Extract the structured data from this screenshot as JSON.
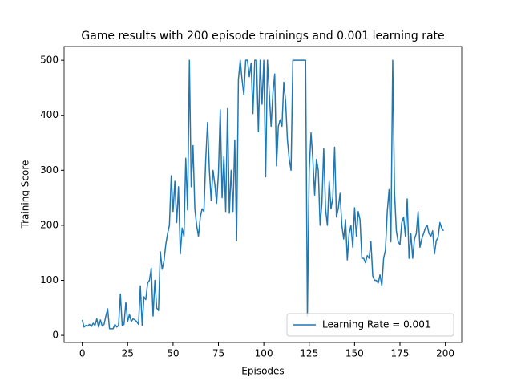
{
  "chart_data": {
    "type": "line",
    "title": "Game results with 200 episode trainings and 0.001 learning rate",
    "xlabel": "Episodes",
    "ylabel": "Training Score",
    "x": [
      0,
      1,
      2,
      3,
      4,
      5,
      6,
      7,
      8,
      9,
      10,
      11,
      12,
      13,
      14,
      15,
      16,
      17,
      18,
      19,
      20,
      21,
      22,
      23,
      24,
      25,
      26,
      27,
      28,
      29,
      30,
      31,
      32,
      33,
      34,
      35,
      36,
      37,
      38,
      39,
      40,
      41,
      42,
      43,
      44,
      45,
      46,
      47,
      48,
      49,
      50,
      51,
      52,
      53,
      54,
      55,
      56,
      57,
      58,
      59,
      60,
      61,
      62,
      63,
      64,
      65,
      66,
      67,
      68,
      69,
      70,
      71,
      72,
      73,
      74,
      75,
      76,
      77,
      78,
      79,
      80,
      81,
      82,
      83,
      84,
      85,
      86,
      87,
      88,
      89,
      90,
      91,
      92,
      93,
      94,
      95,
      96,
      97,
      98,
      99,
      100,
      101,
      102,
      103,
      104,
      105,
      106,
      107,
      108,
      109,
      110,
      111,
      112,
      113,
      114,
      115,
      116,
      117,
      118,
      119,
      120,
      121,
      122,
      123,
      124,
      125,
      126,
      127,
      128,
      129,
      130,
      131,
      132,
      133,
      134,
      135,
      136,
      137,
      138,
      139,
      140,
      141,
      142,
      143,
      144,
      145,
      146,
      147,
      148,
      149,
      150,
      151,
      152,
      153,
      154,
      155,
      156,
      157,
      158,
      159,
      160,
      161,
      162,
      163,
      164,
      165,
      166,
      167,
      168,
      169,
      170,
      171,
      172,
      173,
      174,
      175,
      176,
      177,
      178,
      179,
      180,
      181,
      182,
      183,
      184,
      185,
      186,
      187,
      188,
      189,
      190,
      191,
      192,
      193,
      194,
      195,
      196,
      197,
      198,
      199
    ],
    "series": [
      {
        "name": "Learning Rate = 0.001",
        "color": "#1f77b4",
        "values": [
          28,
          15,
          18,
          17,
          20,
          16,
          22,
          18,
          30,
          15,
          28,
          17,
          20,
          35,
          48,
          12,
          12,
          12,
          20,
          15,
          18,
          75,
          18,
          20,
          60,
          25,
          38,
          25,
          30,
          28,
          25,
          20,
          90,
          18,
          70,
          65,
          95,
          100,
          122,
          35,
          100,
          50,
          45,
          152,
          120,
          135,
          165,
          185,
          200,
          290,
          225,
          280,
          205,
          270,
          148,
          195,
          180,
          322,
          228,
          500,
          270,
          345,
          230,
          200,
          180,
          215,
          230,
          225,
          320,
          387,
          300,
          245,
          300,
          275,
          240,
          295,
          410,
          250,
          325,
          225,
          412,
          222,
          300,
          225,
          355,
          172,
          465,
          500,
          465,
          437,
          500,
          500,
          470,
          495,
          403,
          500,
          500,
          370,
          500,
          420,
          500,
          288,
          500,
          440,
          380,
          440,
          475,
          308,
          380,
          392,
          380,
          460,
          425,
          355,
          320,
          300,
          500,
          500,
          500,
          500,
          500,
          500,
          500,
          500,
          35,
          300,
          368,
          320,
          255,
          320,
          300,
          200,
          240,
          340,
          230,
          200,
          280,
          230,
          250,
          342,
          215,
          230,
          258,
          200,
          175,
          210,
          137,
          185,
          200,
          160,
          232,
          180,
          225,
          210,
          140,
          140,
          132,
          145,
          140,
          170,
          108,
          100,
          100,
          95,
          110,
          90,
          140,
          155,
          225,
          265,
          170,
          500,
          260,
          190,
          170,
          165,
          205,
          215,
          180,
          248,
          140,
          185,
          140,
          175,
          185,
          225,
          160,
          175,
          185,
          195,
          200,
          185,
          180,
          190,
          148,
          172,
          178,
          205,
          195,
          190
        ]
      }
    ],
    "xlim": [
      -10,
      209
    ],
    "ylim": [
      -13,
      525
    ],
    "xticks": [
      0,
      25,
      50,
      75,
      100,
      125,
      150,
      175,
      200
    ],
    "yticks": [
      0,
      100,
      200,
      300,
      400,
      500
    ],
    "legend": "lower right"
  }
}
